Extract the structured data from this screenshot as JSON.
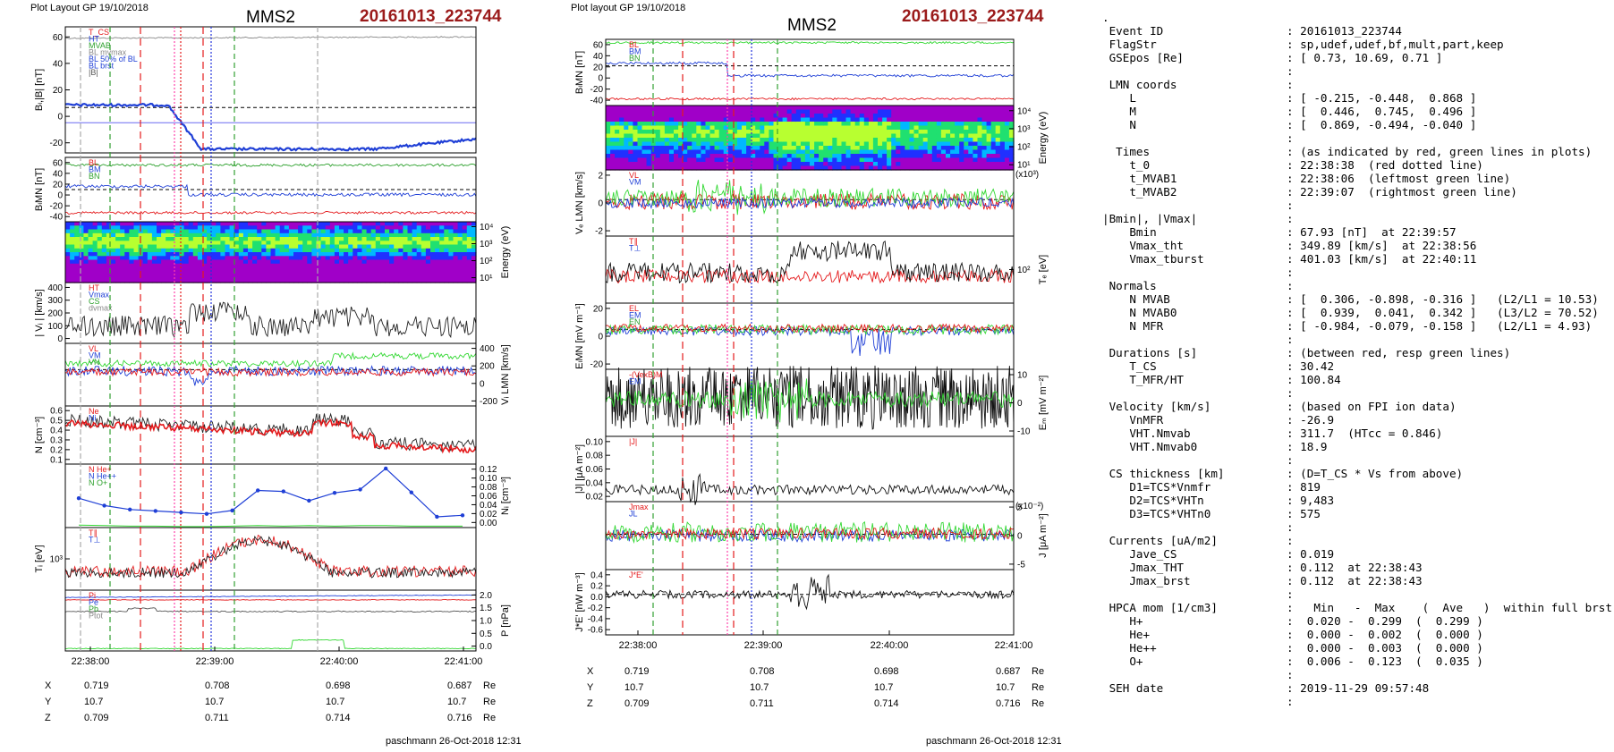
{
  "left_panel": {
    "header": "Plot Layout GP 19/10/2018",
    "title": "MMS2",
    "event": "20161013_223744",
    "panels": [
      {
        "ylabel": "Bₗ,|B| [nT]",
        "ticks": [
          "60",
          "40",
          "20",
          "0",
          "-20"
        ],
        "labels": [
          "T_CS",
          "HT",
          "MVAB",
          "BL mvmax",
          "BL 50% of BL",
          "BL brst",
          "|B|"
        ]
      },
      {
        "ylabel": "BₗMN [nT]",
        "ticks": [
          "60",
          "40",
          "20",
          "0",
          "-20",
          "-40"
        ],
        "labels": [
          "BL",
          "BM",
          "BN"
        ]
      },
      {
        "ylabel": "Energy (eV)",
        "ticks": [
          "10⁴",
          "10³",
          "10²",
          "10¹"
        ],
        "labels": []
      },
      {
        "ylabel": "| Vᵢ | [km/s]",
        "ticks": [
          "400",
          "300",
          "200",
          "100",
          "0"
        ],
        "labels": [
          "HT",
          "Vmax",
          "CS",
          "dvmax"
        ]
      },
      {
        "ylabel": "Vᵢ LMN [km/s]",
        "ticks": [
          "400",
          "200",
          "0",
          "-200"
        ],
        "labels": [
          "VL",
          "VM",
          "VN"
        ]
      },
      {
        "ylabel": "N [cm⁻³]",
        "ticks": [
          "0.6",
          "0.5",
          "0.4",
          "0.3",
          "0.2",
          "0.1"
        ],
        "labels": [
          "Ne",
          "Ni"
        ]
      },
      {
        "ylabel": "Nᵢ [cm⁻³]",
        "ticks": [
          "0.12",
          "0.10",
          "0.08",
          "0.06",
          "0.04",
          "0.02",
          "0.00"
        ],
        "labels": [
          "N He+",
          "N He++",
          "N O+"
        ]
      },
      {
        "ylabel": "Tᵢ [eV]",
        "ticks": [
          "10³"
        ],
        "labels": [
          "T∥",
          "T⊥"
        ]
      },
      {
        "ylabel": "P [nPa]",
        "ticks": [
          "2.0",
          "1.5",
          "1.0",
          "0.5",
          "0.0"
        ],
        "labels": [
          "Pi",
          "Pe",
          "Pb",
          "Ptot"
        ]
      }
    ],
    "xticks": [
      "22:38:00",
      "22:39:00",
      "22:40:00",
      "22:41:00"
    ],
    "footer": "paschmann 26-Oct-2018 12:31"
  },
  "right_panel": {
    "header": "Plot layout GP 19/10/2018",
    "title": "MMS2",
    "event": "20161013_223744",
    "panels": [
      {
        "ylabel": "BₗMN [nT]",
        "ticks": [
          "60",
          "40",
          "20",
          "0",
          "-20",
          "-40"
        ],
        "labels": [
          "BL",
          "BM",
          "BN"
        ]
      },
      {
        "ylabel": "Energy (eV)",
        "ticks": [
          "10⁴",
          "10³",
          "10²",
          "10¹"
        ],
        "labels": []
      },
      {
        "ylabel": "Vₑ LMN [km/s]",
        "ticks": [
          "2",
          "0",
          "-2"
        ],
        "labels": [
          "VL",
          "VM"
        ],
        "multiplier": "(x10³)"
      },
      {
        "ylabel": "Tₑ [eV]",
        "ticks": [
          "10²"
        ],
        "labels": [
          "T∥",
          "T⊥"
        ]
      },
      {
        "ylabel": "EₗMN [mV m⁻¹]",
        "ticks": [
          "20",
          "0",
          "-20"
        ],
        "labels": [
          "EL",
          "EM",
          "EN"
        ]
      },
      {
        "ylabel": "Eₘ [mV m⁻²]",
        "ticks": [
          "10",
          "0",
          "-10"
        ],
        "labels": [
          "-(VexB)M",
          "EM"
        ]
      },
      {
        "ylabel": "|J| [μA m⁻²]",
        "ticks": [
          "0.10",
          "0.08",
          "0.06",
          "0.04",
          "0.02"
        ],
        "labels": [
          "|J|"
        ]
      },
      {
        "ylabel": "J [μA m⁻²]",
        "ticks": [
          "5",
          "0",
          "-5"
        ],
        "labels": [
          "Jmax",
          "JL"
        ],
        "multiplier": "(x10⁻²)"
      },
      {
        "ylabel": "J*E' [nW m⁻³]",
        "ticks": [
          "0.4",
          "0.2",
          "0.0",
          "-0.2",
          "-0.4",
          "-0.6"
        ],
        "labels": [
          "J*E'"
        ]
      }
    ],
    "xticks": [
      "22:38:00",
      "22:39:00",
      "22:40:00",
      "22:41:00"
    ],
    "footer": "paschmann 26-Oct-2018 12:31"
  },
  "position_table": {
    "rows": [
      {
        "name": "X",
        "values": [
          "0.719",
          "0.708",
          "0.698",
          "0.687"
        ],
        "unit": "Re"
      },
      {
        "name": "Y",
        "values": [
          "10.7",
          "10.7",
          "10.7",
          "10.7"
        ],
        "unit": "Re"
      },
      {
        "name": "Z",
        "values": [
          "0.709",
          "0.711",
          "0.714",
          "0.716"
        ],
        "unit": "Re"
      }
    ]
  },
  "info": [
    {
      "k": ".",
      "v": ""
    },
    {
      "k": " Event ID",
      "v": ": 20161013_223744"
    },
    {
      "k": " FlagStr",
      "v": ": sp,udef,udef,bf,mult,part,keep"
    },
    {
      "k": " GSEpos [Re]",
      "v": ": [ 0.73, 10.69, 0.71 ]"
    },
    {
      "k": "",
      "v": ":"
    },
    {
      "k": " LMN coords",
      "v": ":"
    },
    {
      "k": "    L",
      "v": ": [ -0.215, -0.448,  0.868 ]"
    },
    {
      "k": "    M",
      "v": ": [  0.446,  0.745,  0.496 ]"
    },
    {
      "k": "    N",
      "v": ": [  0.869, -0.494, -0.040 ]"
    },
    {
      "k": "",
      "v": ":"
    },
    {
      "k": "  Times",
      "v": ": (as indicated by red, green lines in plots)"
    },
    {
      "k": "    t_0",
      "v": ": 22:38:38  (red dotted line)"
    },
    {
      "k": "    t_MVAB1",
      "v": ": 22:38:06  (leftmost green line)"
    },
    {
      "k": "    t_MVAB2",
      "v": ": 22:39:07  (rightmost green line)"
    },
    {
      "k": "",
      "v": ":"
    },
    {
      "k": "|Bmin|, |Vmax|",
      "v": ":"
    },
    {
      "k": "    Bmin",
      "v": ": 67.93 [nT]  at 22:39:57"
    },
    {
      "k": "    Vmax_tht",
      "v": ": 349.89 [km/s]  at 22:38:56"
    },
    {
      "k": "    Vmax_tburst",
      "v": ": 401.03 [km/s]  at 22:40:11"
    },
    {
      "k": "",
      "v": ":"
    },
    {
      "k": " Normals",
      "v": ":"
    },
    {
      "k": "    N MVAB",
      "v": ": [  0.306, -0.898, -0.316 ]   (L2/L1 = 10.53)"
    },
    {
      "k": "    N MVAB0",
      "v": ": [  0.939,  0.041,  0.342 ]   (L3/L2 = 70.52)"
    },
    {
      "k": "    N MFR",
      "v": ": [ -0.984, -0.079, -0.158 ]   (L2/L1 = 4.93)"
    },
    {
      "k": "",
      "v": ":"
    },
    {
      "k": " Durations [s]",
      "v": ": (between red, resp green lines)"
    },
    {
      "k": "    T_CS",
      "v": ": 30.42"
    },
    {
      "k": "    T_MFR/HT",
      "v": ": 100.84"
    },
    {
      "k": "",
      "v": ":"
    },
    {
      "k": " Velocity [km/s]",
      "v": ": (based on FPI ion data)"
    },
    {
      "k": "    VnMFR",
      "v": ": -26.9"
    },
    {
      "k": "    VHT.Nmvab",
      "v": ": 311.7  (HTcc = 0.846)"
    },
    {
      "k": "    VHT.Nmvab0",
      "v": ": 18.9"
    },
    {
      "k": "",
      "v": ":"
    },
    {
      "k": " CS thickness [km]",
      "v": ": (D=T_CS * Vs from above)"
    },
    {
      "k": "    D1=TCS*Vnmfr",
      "v": ": 819"
    },
    {
      "k": "    D2=TCS*VHTn",
      "v": ": 9,483"
    },
    {
      "k": "    D3=TCS*VHTn0",
      "v": ": 575"
    },
    {
      "k": "",
      "v": ":"
    },
    {
      "k": " Currents [uA/m2]",
      "v": ":"
    },
    {
      "k": "    Jave_CS",
      "v": ": 0.019"
    },
    {
      "k": "    Jmax_THT",
      "v": ": 0.112  at 22:38:43"
    },
    {
      "k": "    Jmax_brst",
      "v": ": 0.112  at 22:38:43"
    },
    {
      "k": "",
      "v": ":"
    },
    {
      "k": " HPCA mom [1/cm3]",
      "v": ":   Min   -  Max    (  Ave   )  within full brst int"
    },
    {
      "k": "    H+",
      "v": ":  0.020 -  0.299  (  0.299 )"
    },
    {
      "k": "    He+",
      "v": ":  0.000 -  0.002  (  0.000 )"
    },
    {
      "k": "    He++",
      "v": ":  0.000 -  0.003  (  0.000 )"
    },
    {
      "k": "    O+",
      "v": ":  0.006 -  0.123  (  0.035 )"
    },
    {
      "k": "",
      "v": ":"
    },
    {
      "k": " SEH date",
      "v": ": 2019-11-29 09:57:48"
    },
    {
      "k": "",
      "v": ":"
    }
  ],
  "chart_data": [
    {
      "type": "line",
      "title": "MMS2",
      "subtitle": "20161013_223744",
      "x_range": [
        "22:37:44",
        "22:41:05"
      ],
      "ion_density_series": [
        {
          "name": "N O+",
          "x": [
            "22:37:44",
            "22:37:57",
            "22:38:10",
            "22:38:23",
            "22:38:36",
            "22:38:49",
            "22:39:02",
            "22:39:15",
            "22:39:28",
            "22:39:41",
            "22:39:54",
            "22:40:07",
            "22:40:20",
            "22:40:33",
            "22:40:46",
            "22:40:59"
          ],
          "values": [
            0.06,
            0.045,
            0.037,
            0.034,
            0.031,
            0.028,
            0.035,
            0.076,
            0.074,
            0.055,
            0.071,
            0.078,
            0.121,
            0.072,
            0.022,
            0.025
          ]
        }
      ]
    },
    {
      "type": "line",
      "title": "MMS2",
      "subtitle": "20161013_223744",
      "x_range": [
        "22:37:44",
        "22:41:05"
      ]
    }
  ]
}
